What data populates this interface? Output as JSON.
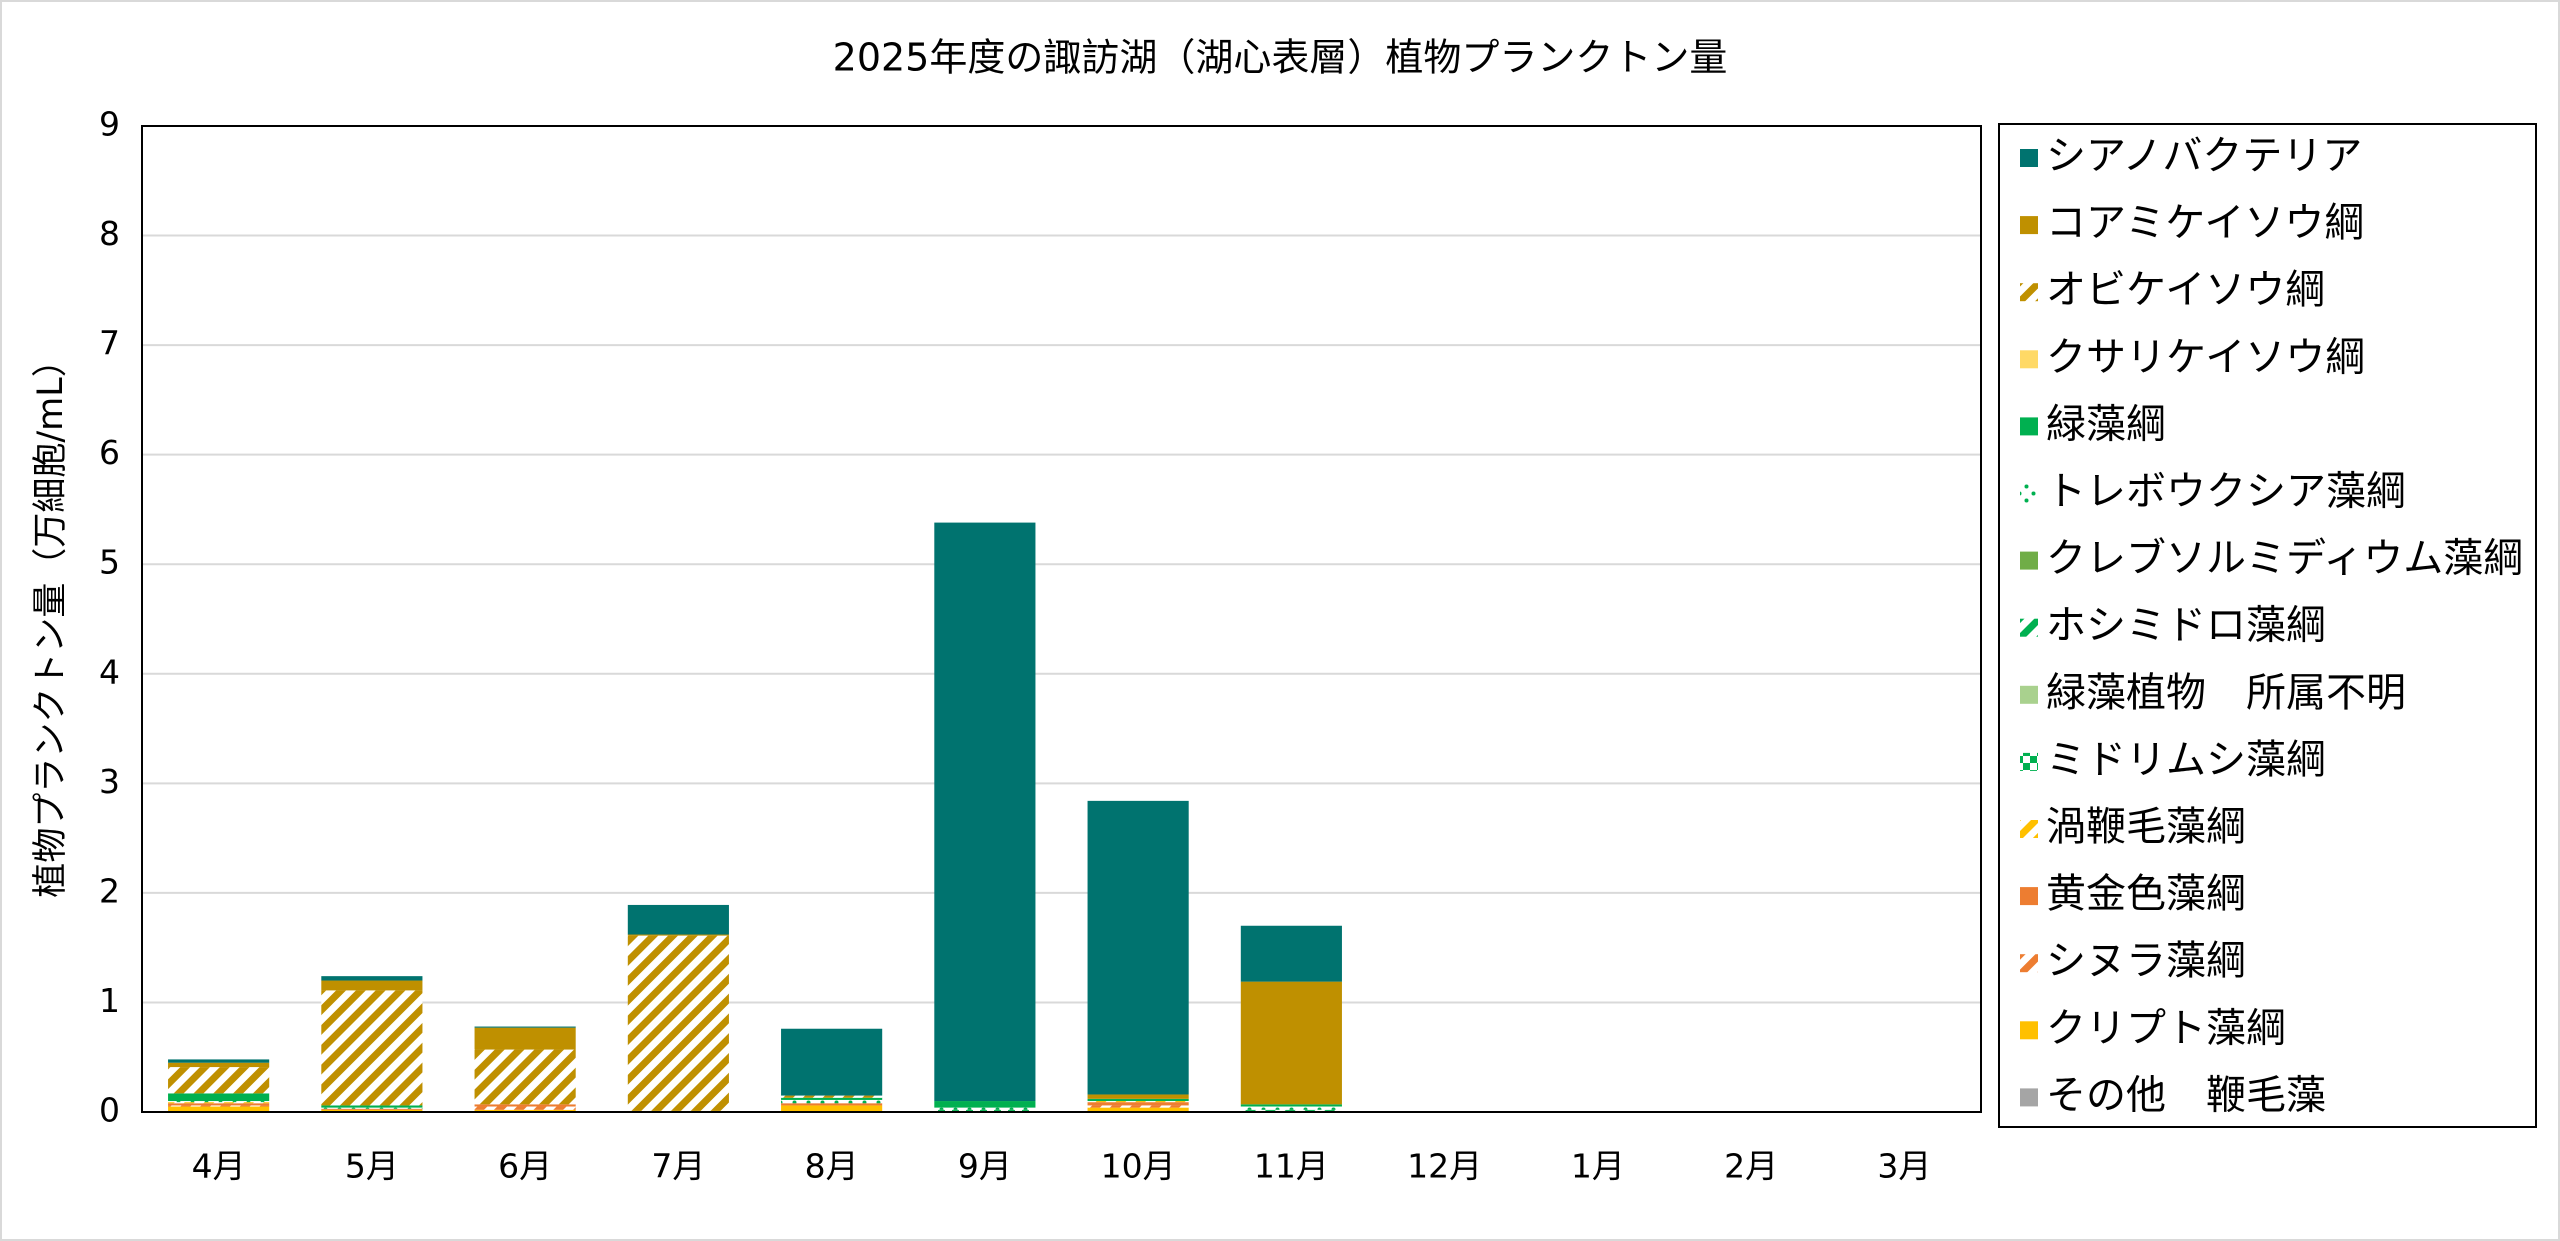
{
  "chart_data": {
    "type": "stacked_bar",
    "title": "2025年度の諏訪湖（湖心表層）植物プランクトン量",
    "y_label": "植物プランクトン量（万細胞/mL）",
    "categories": [
      "4月",
      "5月",
      "6月",
      "7月",
      "8月",
      "9月",
      "10月",
      "11月",
      "12月",
      "1月",
      "2月",
      "3月"
    ],
    "ylim": [
      0,
      9
    ],
    "yticks": [
      0,
      1,
      2,
      3,
      4,
      5,
      6,
      7,
      8,
      9
    ],
    "grid": true,
    "legend": "right",
    "series": [
      {
        "name": "シアノバクテリア",
        "color": "#00736f",
        "pattern": "solid",
        "values": [
          0.03,
          0.04,
          0.01,
          0.27,
          0.61,
          5.28,
          2.68,
          0.51,
          null,
          null,
          null,
          null
        ]
      },
      {
        "name": "コアミケイソウ綱",
        "color": "#bf9000",
        "pattern": "solid",
        "values": [
          0.04,
          0.09,
          0.2,
          0.01,
          0,
          0,
          0.04,
          1.12,
          null,
          null,
          null,
          null
        ]
      },
      {
        "name": "オビケイソウ綱",
        "color": "#bf9000",
        "pattern": "diagonal",
        "values": [
          0.24,
          1.05,
          0.5,
          1.6,
          0.02,
          0,
          0,
          0,
          null,
          null,
          null,
          null
        ]
      },
      {
        "name": "クサリケイソウ綱",
        "color": "#ffd966",
        "pattern": "solid",
        "values": [
          0,
          0,
          0,
          0,
          0,
          0,
          0,
          0,
          null,
          null,
          null,
          null
        ]
      },
      {
        "name": "緑藻綱",
        "color": "#00b050",
        "pattern": "solid",
        "values": [
          0.07,
          0.02,
          0,
          0,
          0.02,
          0.06,
          0.02,
          0.02,
          null,
          null,
          null,
          null
        ]
      },
      {
        "name": "トレボウクシア藻綱",
        "color": "#00b050",
        "pattern": "dots",
        "values": [
          0.01,
          0.01,
          0,
          0,
          0.03,
          0.02,
          0,
          0.03,
          null,
          null,
          null,
          null
        ]
      },
      {
        "name": "クレブソルミディウム藻綱",
        "color": "#70ad47",
        "pattern": "solid",
        "values": [
          0,
          0,
          0,
          0,
          0,
          0,
          0,
          0,
          null,
          null,
          null,
          null
        ]
      },
      {
        "name": "ホシミドロ藻綱",
        "color": "#00b050",
        "pattern": "diagonal",
        "values": [
          0,
          0,
          0,
          0,
          0,
          0,
          0,
          0.01,
          null,
          null,
          null,
          null
        ]
      },
      {
        "name": "緑藻植物　所属不明",
        "color": "#a9d18e",
        "pattern": "solid",
        "values": [
          0,
          0,
          0,
          0,
          0,
          0,
          0,
          0,
          null,
          null,
          null,
          null
        ]
      },
      {
        "name": "ミドリムシ藻綱",
        "color": "#00b050",
        "pattern": "grid",
        "values": [
          0,
          0,
          0,
          0,
          0,
          0.01,
          0,
          0,
          null,
          null,
          null,
          null
        ]
      },
      {
        "name": "渦鞭毛藻綱",
        "color": "#ffc000",
        "pattern": "diagonal",
        "values": [
          0.01,
          0,
          0,
          0,
          0,
          0,
          0.01,
          0,
          null,
          null,
          null,
          null
        ]
      },
      {
        "name": "黄金色藻綱",
        "color": "#ed7d31",
        "pattern": "solid",
        "values": [
          0.02,
          0.01,
          0.02,
          0,
          0.02,
          0,
          0.03,
          0,
          null,
          null,
          null,
          null
        ]
      },
      {
        "name": "シヌラ藻綱",
        "color": "#ed7d31",
        "pattern": "diagonal",
        "values": [
          0.01,
          0,
          0.03,
          0,
          0,
          0,
          0.02,
          0,
          null,
          null,
          null,
          null
        ]
      },
      {
        "name": "クリプト藻綱",
        "color": "#ffc000",
        "pattern": "solid",
        "values": [
          0.05,
          0.02,
          0.02,
          0.01,
          0.06,
          0.01,
          0.04,
          0.01,
          null,
          null,
          null,
          null
        ]
      },
      {
        "name": "その他　鞭毛藻",
        "color": "#a5a5a5",
        "pattern": "solid",
        "values": [
          0,
          0,
          0,
          0,
          0,
          0,
          0,
          0,
          null,
          null,
          null,
          null
        ]
      }
    ]
  }
}
